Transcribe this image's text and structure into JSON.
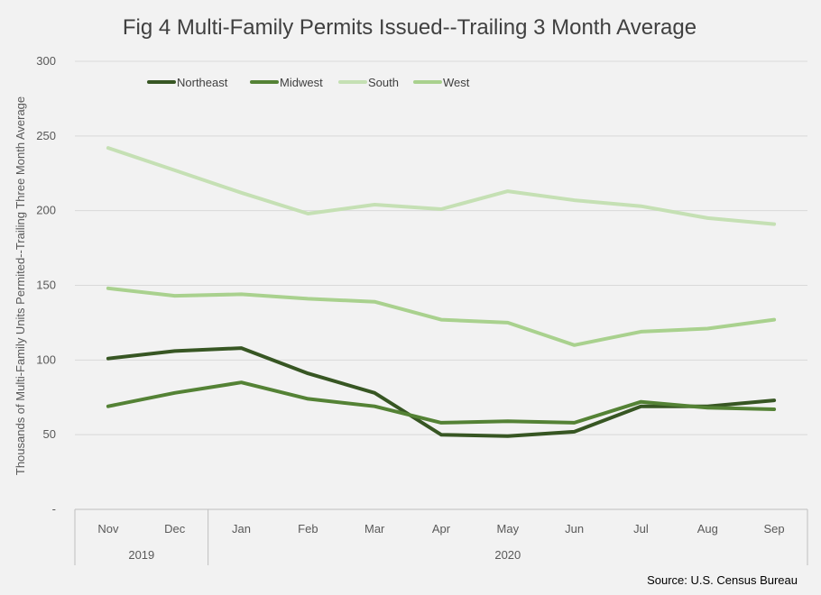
{
  "chart_data": {
    "type": "line",
    "title": "Fig 4 Multi-Family Permits Issued--Trailing 3 Month Average",
    "ylabel": "Thousands of Multi-Family Units Permited--Trailing Three Month  Average",
    "xlabel": "",
    "ylim": [
      0,
      300
    ],
    "yticks": [
      "-",
      "50",
      "100",
      "150",
      "200",
      "250",
      "300"
    ],
    "categories": [
      "Nov",
      "Dec",
      "Jan",
      "Feb",
      "Mar",
      "Apr",
      "May",
      "Jun",
      "Jul",
      "Aug",
      "Sep"
    ],
    "year_groups": [
      {
        "label": "2019",
        "start": 0,
        "end": 1
      },
      {
        "label": "2020",
        "start": 2,
        "end": 10
      }
    ],
    "series": [
      {
        "name": "Northeast",
        "color": "#375623",
        "values": [
          101,
          106,
          108,
          91,
          78,
          50,
          49,
          52,
          69,
          69,
          73
        ]
      },
      {
        "name": "Midwest",
        "color": "#548235",
        "values": [
          69,
          78,
          85,
          74,
          69,
          58,
          59,
          58,
          72,
          68,
          67
        ]
      },
      {
        "name": "South",
        "color": "#c5e0b4",
        "values": [
          242,
          227,
          212,
          198,
          204,
          201,
          213,
          207,
          203,
          195,
          191
        ]
      },
      {
        "name": "West",
        "color": "#a9d18e",
        "values": [
          148,
          143,
          144,
          141,
          139,
          127,
          125,
          110,
          119,
          121,
          127
        ]
      }
    ],
    "legend_position": "top-left",
    "grid": true,
    "source": "Source: U.S. Census Bureau"
  }
}
